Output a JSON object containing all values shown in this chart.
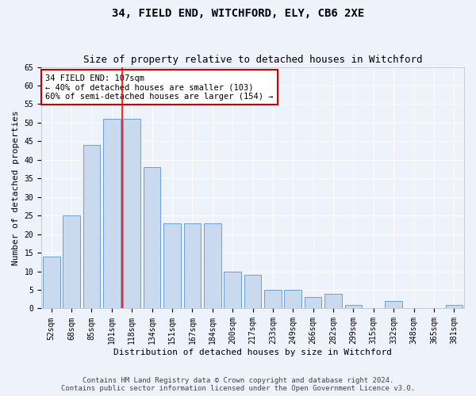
{
  "title1": "34, FIELD END, WITCHFORD, ELY, CB6 2XE",
  "title2": "Size of property relative to detached houses in Witchford",
  "xlabel": "Distribution of detached houses by size in Witchford",
  "ylabel": "Number of detached properties",
  "categories": [
    "52sqm",
    "68sqm",
    "85sqm",
    "101sqm",
    "118sqm",
    "134sqm",
    "151sqm",
    "167sqm",
    "184sqm",
    "200sqm",
    "217sqm",
    "233sqm",
    "249sqm",
    "266sqm",
    "282sqm",
    "299sqm",
    "315sqm",
    "332sqm",
    "348sqm",
    "365sqm",
    "381sqm"
  ],
  "values": [
    14,
    25,
    44,
    51,
    51,
    38,
    23,
    23,
    23,
    10,
    9,
    5,
    5,
    3,
    4,
    1,
    0,
    2,
    0,
    0,
    1
  ],
  "bar_color": "#c9d9ee",
  "bar_edge_color": "#6a9fd8",
  "ylim": [
    0,
    65
  ],
  "yticks": [
    0,
    5,
    10,
    15,
    20,
    25,
    30,
    35,
    40,
    45,
    50,
    55,
    60,
    65
  ],
  "annotation_text": "34 FIELD END: 107sqm\n← 40% of detached houses are smaller (103)\n60% of semi-detached houses are larger (154) →",
  "annotation_box_color": "#ffffff",
  "annotation_box_edge": "#cc0000",
  "red_line_x": 3.5,
  "footer1": "Contains HM Land Registry data © Crown copyright and database right 2024.",
  "footer2": "Contains public sector information licensed under the Open Government Licence v3.0.",
  "background_color": "#eef2fb",
  "grid_color": "#ffffff",
  "title_fontsize": 10,
  "subtitle_fontsize": 9,
  "axis_label_fontsize": 8,
  "tick_fontsize": 7,
  "annotation_fontsize": 7.5,
  "footer_fontsize": 6.5
}
